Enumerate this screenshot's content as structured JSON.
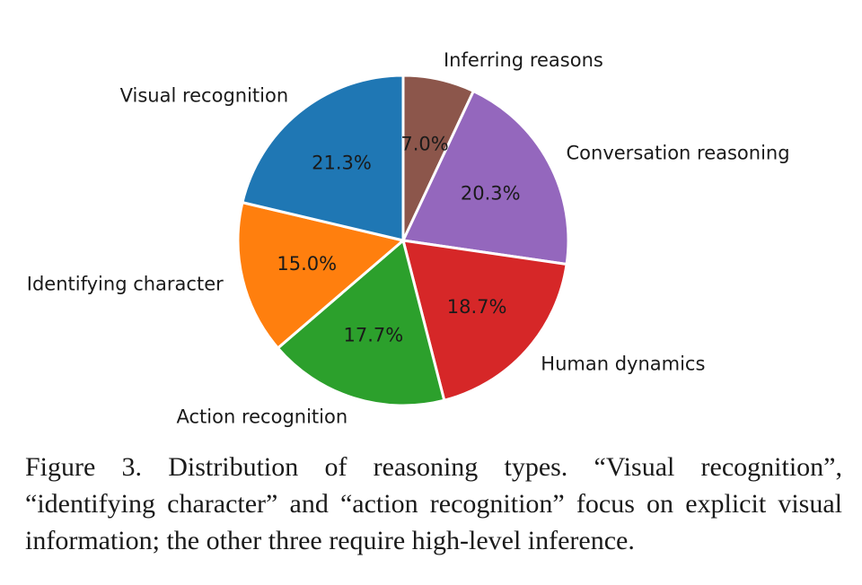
{
  "chart_data": {
    "type": "pie",
    "title": "",
    "start_angle_deg": 90,
    "direction": "clockwise",
    "slices": [
      {
        "label": "Inferring reasons",
        "value": 7.0,
        "pct_label": "7.0%",
        "color": "#8c564b"
      },
      {
        "label": "Conversation reasoning",
        "value": 20.3,
        "pct_label": "20.3%",
        "color": "#9467bd"
      },
      {
        "label": "Human dynamics",
        "value": 18.7,
        "pct_label": "18.7%",
        "color": "#d62728"
      },
      {
        "label": "Action recognition",
        "value": 17.7,
        "pct_label": "17.7%",
        "color": "#2ca02c"
      },
      {
        "label": "Identifying character",
        "value": 15.0,
        "pct_label": "15.0%",
        "color": "#ff7f0e"
      },
      {
        "label": "Visual recognition",
        "value": 21.3,
        "pct_label": "21.3%",
        "color": "#1f77b4"
      }
    ]
  },
  "caption": {
    "text": "Figure 3. Distribution of reasoning types.  “Visual recognition”, “identifying character” and “action recognition” focus on explicit visual information; the other three require high-level inference."
  }
}
